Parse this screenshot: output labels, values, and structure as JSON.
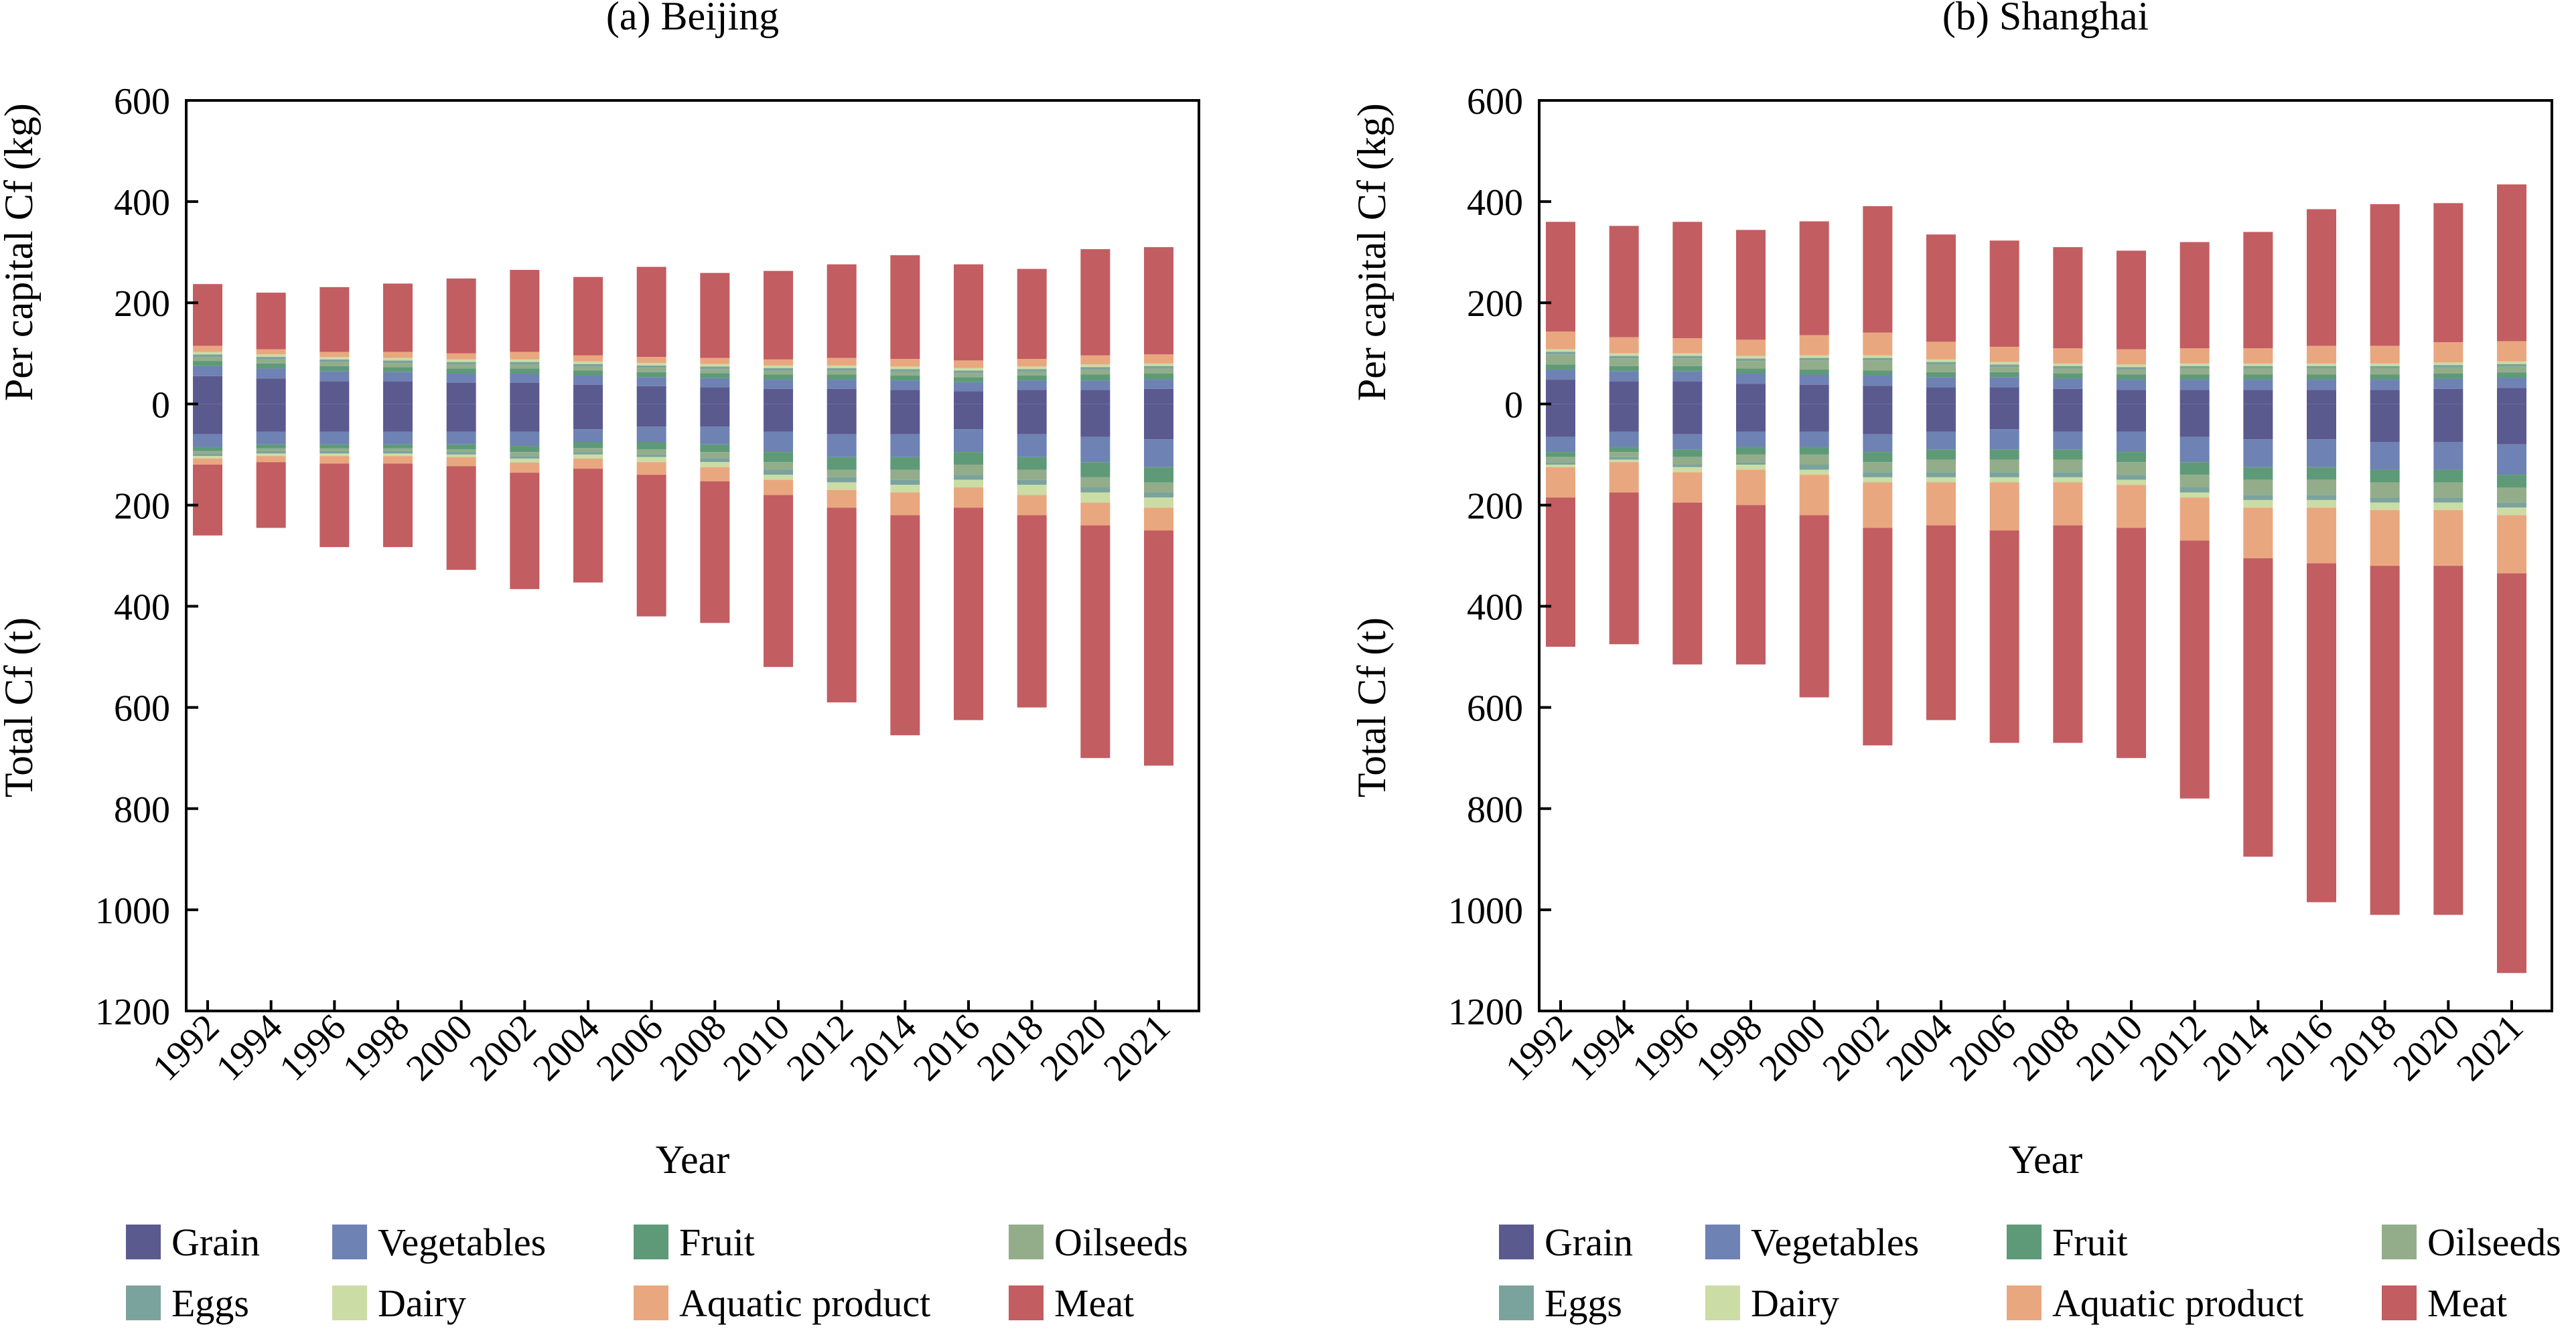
{
  "legend": {
    "items": [
      {
        "key": "grain",
        "label": "Grain",
        "color": "#5b5a8f"
      },
      {
        "key": "vegetables",
        "label": "Vegetables",
        "color": "#6f82b4"
      },
      {
        "key": "fruit",
        "label": "Fruit",
        "color": "#5e9a78"
      },
      {
        "key": "oilseeds",
        "label": "Oilseeds",
        "color": "#93ad8b"
      },
      {
        "key": "eggs",
        "label": "Eggs",
        "color": "#7ba39d"
      },
      {
        "key": "dairy",
        "label": "Dairy",
        "color": "#cbdca5"
      },
      {
        "key": "aquatic",
        "label": "Aquatic product",
        "color": "#e9a77f"
      },
      {
        "key": "meat",
        "label": "Meat",
        "color": "#c25d62"
      }
    ]
  },
  "chart_data": [
    {
      "type": "bar",
      "title": "(a) Beijing",
      "xlabel": "Year",
      "ylabel_top": "Per capital Cf (kg)",
      "ylabel_bottom": "Total Cf (t)",
      "ylim": [
        -1200,
        600
      ],
      "yticks_top": [
        0,
        200,
        400,
        600
      ],
      "yticks_bottom": [
        200,
        400,
        600,
        800,
        1000,
        1200
      ],
      "categories": [
        "1992",
        "1994",
        "1996",
        "1998",
        "2000",
        "2002",
        "2004",
        "2006",
        "2008",
        "2010",
        "2012",
        "2014",
        "2016",
        "2018",
        "2020",
        "2021"
      ],
      "per_capita": {
        "grain": [
          55,
          50,
          45,
          45,
          42,
          42,
          38,
          35,
          33,
          30,
          30,
          28,
          25,
          28,
          28,
          30
        ],
        "vegetables": [
          20,
          20,
          20,
          18,
          18,
          18,
          18,
          18,
          18,
          18,
          18,
          18,
          18,
          18,
          18,
          18
        ],
        "fruit": [
          10,
          10,
          10,
          10,
          10,
          10,
          10,
          10,
          10,
          10,
          10,
          10,
          10,
          10,
          12,
          12
        ],
        "oilseeds": [
          8,
          8,
          8,
          8,
          8,
          8,
          8,
          8,
          8,
          8,
          8,
          8,
          8,
          8,
          10,
          10
        ],
        "eggs": [
          5,
          5,
          5,
          5,
          5,
          5,
          5,
          5,
          5,
          5,
          5,
          5,
          5,
          5,
          5,
          5
        ],
        "dairy": [
          5,
          5,
          5,
          5,
          5,
          5,
          5,
          5,
          5,
          5,
          5,
          5,
          5,
          5,
          5,
          5
        ],
        "aquatic": [
          12,
          10,
          10,
          12,
          12,
          15,
          12,
          12,
          12,
          12,
          15,
          15,
          15,
          15,
          18,
          18
        ],
        "meat": [
          122,
          112,
          128,
          135,
          148,
          162,
          155,
          178,
          168,
          175,
          185,
          205,
          190,
          178,
          210,
          212
        ]
      },
      "total": {
        "grain": [
          60,
          55,
          55,
          55,
          55,
          55,
          50,
          45,
          45,
          55,
          60,
          60,
          50,
          60,
          65,
          70
        ],
        "vegetables": [
          25,
          25,
          25,
          25,
          25,
          28,
          25,
          30,
          35,
          40,
          45,
          45,
          45,
          45,
          50,
          55
        ],
        "fruit": [
          8,
          8,
          8,
          8,
          10,
          12,
          12,
          15,
          15,
          20,
          25,
          25,
          25,
          25,
          30,
          30
        ],
        "oilseeds": [
          5,
          5,
          5,
          5,
          5,
          8,
          8,
          10,
          12,
          15,
          15,
          20,
          20,
          20,
          20,
          20
        ],
        "eggs": [
          5,
          5,
          5,
          5,
          5,
          5,
          5,
          5,
          8,
          10,
          10,
          10,
          10,
          10,
          10,
          10
        ],
        "dairy": [
          5,
          5,
          5,
          5,
          5,
          8,
          8,
          10,
          10,
          10,
          15,
          15,
          15,
          20,
          20,
          20
        ],
        "aquatic": [
          12,
          12,
          15,
          15,
          18,
          20,
          20,
          25,
          28,
          30,
          35,
          45,
          40,
          40,
          45,
          45
        ],
        "meat": [
          140,
          130,
          165,
          165,
          205,
          230,
          225,
          280,
          280,
          340,
          385,
          435,
          420,
          380,
          460,
          465
        ]
      }
    },
    {
      "type": "bar",
      "title": "(b) Shanghai",
      "xlabel": "Year",
      "ylabel_top": "Per capital Cf (kg)",
      "ylabel_bottom": "Total Cf (t)",
      "ylim": [
        -1200,
        600
      ],
      "yticks_top": [
        0,
        200,
        400,
        600
      ],
      "yticks_bottom": [
        200,
        400,
        600,
        800,
        1000,
        1200
      ],
      "categories": [
        "1992",
        "1994",
        "1996",
        "1998",
        "2000",
        "2002",
        "2004",
        "2006",
        "2008",
        "2010",
        "2012",
        "2014",
        "2016",
        "2018",
        "2020",
        "2021"
      ],
      "per_capita": {
        "grain": [
          48,
          45,
          45,
          40,
          38,
          36,
          33,
          33,
          30,
          28,
          28,
          28,
          28,
          28,
          30,
          32
        ],
        "vegetables": [
          20,
          20,
          20,
          20,
          20,
          20,
          20,
          20,
          20,
          20,
          20,
          20,
          20,
          20,
          20,
          20
        ],
        "fruit": [
          10,
          10,
          10,
          10,
          10,
          10,
          10,
          10,
          10,
          10,
          10,
          10,
          10,
          10,
          10,
          10
        ],
        "oilseeds": [
          20,
          15,
          15,
          15,
          18,
          20,
          15,
          10,
          10,
          10,
          12,
          12,
          12,
          12,
          12,
          12
        ],
        "eggs": [
          5,
          5,
          5,
          5,
          5,
          5,
          5,
          5,
          5,
          5,
          5,
          5,
          5,
          5,
          5,
          5
        ],
        "dairy": [
          5,
          5,
          5,
          5,
          5,
          5,
          5,
          5,
          5,
          5,
          5,
          5,
          5,
          5,
          5,
          5
        ],
        "aquatic": [
          35,
          32,
          30,
          32,
          40,
          45,
          35,
          30,
          30,
          30,
          30,
          30,
          35,
          35,
          40,
          40
        ],
        "meat": [
          217,
          220,
          230,
          217,
          225,
          250,
          212,
          210,
          200,
          195,
          210,
          230,
          270,
          280,
          275,
          310
        ]
      },
      "total": {
        "grain": [
          65,
          55,
          60,
          55,
          55,
          60,
          55,
          50,
          55,
          55,
          65,
          70,
          70,
          75,
          75,
          80
        ],
        "vegetables": [
          30,
          30,
          30,
          30,
          30,
          35,
          35,
          40,
          35,
          40,
          50,
          55,
          55,
          55,
          55,
          60
        ],
        "fruit": [
          10,
          10,
          15,
          15,
          15,
          20,
          20,
          20,
          20,
          20,
          25,
          25,
          25,
          25,
          25,
          25
        ],
        "oilseeds": [
          10,
          10,
          15,
          15,
          20,
          20,
          25,
          25,
          25,
          25,
          25,
          30,
          30,
          30,
          30,
          30
        ],
        "eggs": [
          5,
          5,
          5,
          5,
          10,
          10,
          10,
          10,
          10,
          10,
          10,
          10,
          10,
          10,
          10,
          10
        ],
        "dairy": [
          5,
          5,
          10,
          10,
          10,
          10,
          10,
          10,
          10,
          10,
          10,
          15,
          15,
          15,
          15,
          15
        ],
        "aquatic": [
          60,
          60,
          60,
          70,
          80,
          90,
          85,
          95,
          85,
          85,
          85,
          100,
          110,
          110,
          110,
          115
        ],
        "meat": [
          295,
          300,
          320,
          315,
          360,
          430,
          385,
          420,
          430,
          455,
          510,
          590,
          670,
          690,
          690,
          790
        ]
      }
    }
  ]
}
